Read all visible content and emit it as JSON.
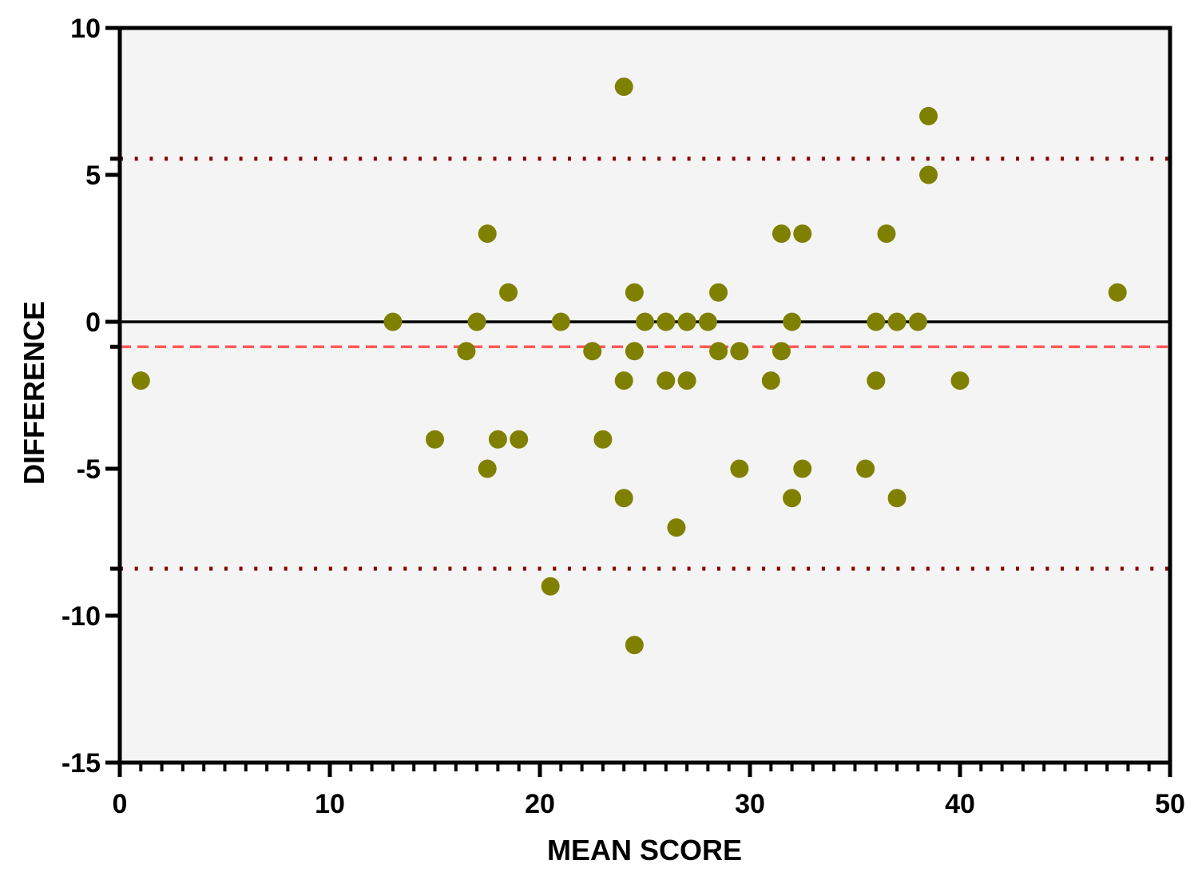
{
  "chart_data": {
    "type": "scatter",
    "title": "",
    "xlabel": "MEAN SCORE",
    "ylabel": "DIFFERENCE",
    "xlim": [
      0,
      50
    ],
    "ylim": [
      -15,
      10
    ],
    "x_ticks": [
      0,
      10,
      20,
      30,
      40,
      50
    ],
    "y_ticks": [
      10,
      5,
      0,
      -5,
      -10,
      -15
    ],
    "x_tick_labels": [
      "0",
      "10",
      "20",
      "30",
      "40",
      "50"
    ],
    "y_tick_labels": [
      "10",
      "5",
      "0",
      "-5",
      "-10",
      "-15"
    ],
    "grid": false,
    "plot_background": "#f4f4f4",
    "marker_color": "#808000",
    "reference_lines": [
      {
        "kind": "zero",
        "y": 0,
        "style": "solid",
        "color": "#000000"
      },
      {
        "kind": "mean-difference",
        "y": -0.85,
        "style": "dashed",
        "color": "#ff5a5a"
      },
      {
        "kind": "upper-limit",
        "y": 5.55,
        "style": "dotted",
        "color": "#8b0000"
      },
      {
        "kind": "lower-limit",
        "y": -8.4,
        "style": "dotted",
        "color": "#8b0000"
      }
    ],
    "points": [
      {
        "x": 1,
        "y": -2
      },
      {
        "x": 13,
        "y": 0
      },
      {
        "x": 15,
        "y": -4
      },
      {
        "x": 16.5,
        "y": -1
      },
      {
        "x": 17,
        "y": 0
      },
      {
        "x": 17.5,
        "y": 3
      },
      {
        "x": 17.5,
        "y": -5
      },
      {
        "x": 18,
        "y": -4
      },
      {
        "x": 18.5,
        "y": 1
      },
      {
        "x": 19,
        "y": -4
      },
      {
        "x": 20.5,
        "y": -9
      },
      {
        "x": 21,
        "y": 0
      },
      {
        "x": 22.5,
        "y": -1
      },
      {
        "x": 23,
        "y": -4
      },
      {
        "x": 24,
        "y": 8
      },
      {
        "x": 24,
        "y": -2
      },
      {
        "x": 24,
        "y": -6
      },
      {
        "x": 24.5,
        "y": 1
      },
      {
        "x": 24.5,
        "y": -1
      },
      {
        "x": 24.5,
        "y": -11
      },
      {
        "x": 25,
        "y": 0
      },
      {
        "x": 26,
        "y": 0
      },
      {
        "x": 26,
        "y": -2
      },
      {
        "x": 26.5,
        "y": -7
      },
      {
        "x": 27,
        "y": 0
      },
      {
        "x": 27,
        "y": -2
      },
      {
        "x": 28,
        "y": 0
      },
      {
        "x": 28.5,
        "y": 1
      },
      {
        "x": 28.5,
        "y": -1
      },
      {
        "x": 29.5,
        "y": -1
      },
      {
        "x": 29.5,
        "y": -5
      },
      {
        "x": 31,
        "y": -2
      },
      {
        "x": 31.5,
        "y": 3
      },
      {
        "x": 31.5,
        "y": -1
      },
      {
        "x": 32,
        "y": 0
      },
      {
        "x": 32,
        "y": -6
      },
      {
        "x": 32.5,
        "y": 3
      },
      {
        "x": 32.5,
        "y": -5
      },
      {
        "x": 35.5,
        "y": -5
      },
      {
        "x": 36,
        "y": 0
      },
      {
        "x": 36,
        "y": -2
      },
      {
        "x": 36.5,
        "y": 3
      },
      {
        "x": 37,
        "y": 0
      },
      {
        "x": 37,
        "y": -6
      },
      {
        "x": 38,
        "y": 0
      },
      {
        "x": 38.5,
        "y": 7
      },
      {
        "x": 38.5,
        "y": 5
      },
      {
        "x": 40,
        "y": -2
      },
      {
        "x": 47.5,
        "y": 1
      }
    ]
  }
}
